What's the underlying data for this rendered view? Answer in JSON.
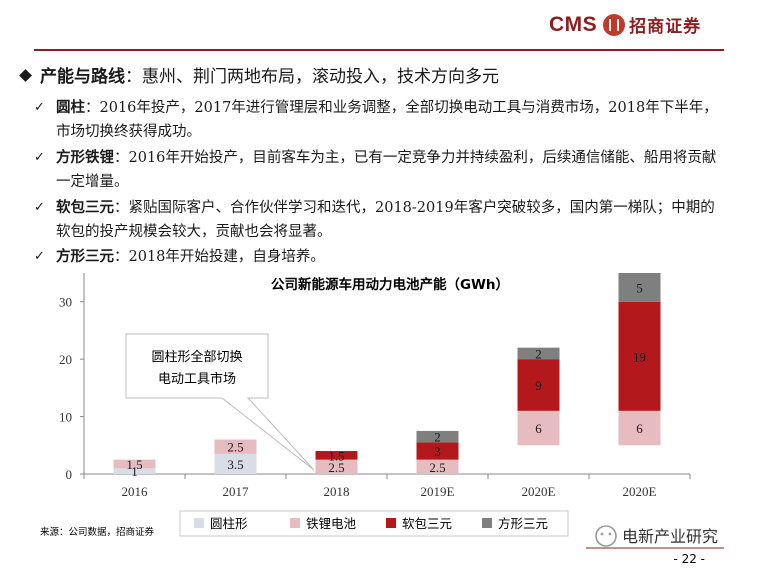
{
  "header": {
    "logo_text": "CMS",
    "logo_cn": "招商证券",
    "accent_color": "#8a1f1f"
  },
  "main_point": {
    "title": "产能与路线",
    "text": "：惠州、荆门两地布局，滚动投入，技术方向多元"
  },
  "sub_points": [
    {
      "title": "圆柱",
      "text": "：2016年投产，2017年进行管理层和业务调整，全部切换电动工具与消费市场，2018年下半年，市场切换终获得成功。"
    },
    {
      "title": "方形铁锂",
      "text": "：2016年开始投产，目前客车为主，已有一定竞争力并持续盈利，后续通信储能、船用将贡献一定增量。"
    },
    {
      "title": "软包三元",
      "text": "：紧贴国际客户、合作伙伴学习和迭代，2018-2019年客户突破较多，国内第一梯队；中期的软包的投产规模会较大，贡献也会将显著。"
    },
    {
      "title": "方形三元",
      "text": "：2018年开始投建，自身培养。"
    }
  ],
  "chart_data": {
    "type": "bar",
    "stacked": true,
    "title": "公司新能源车用动力电池产能（GWh）",
    "xlabel": "",
    "ylabel": "",
    "ylim": [
      0,
      35
    ],
    "yticks": [
      0,
      10,
      20,
      30
    ],
    "grid": false,
    "legend_position": "bottom",
    "categories": [
      "2016",
      "2017",
      "2018",
      "2019E",
      "2020E",
      "2020E"
    ],
    "series": [
      {
        "name": "圆柱形",
        "color": "#d9dde6",
        "values": [
          1,
          3.5,
          0,
          0,
          0,
          0
        ],
        "labels": [
          "1",
          "3.5",
          "",
          "",
          "",
          ""
        ]
      },
      {
        "name": "铁锂电池",
        "color": "#e6bcc0",
        "values": [
          1.5,
          2.5,
          2.5,
          2.5,
          6,
          6
        ],
        "labels": [
          "1.5",
          "2.5",
          "2.5",
          "2.5",
          "6",
          "6"
        ]
      },
      {
        "name": "软包三元",
        "color": "#b3191c",
        "values": [
          0,
          0,
          1.5,
          3,
          9,
          19
        ],
        "labels": [
          "",
          "",
          "1.5",
          "3",
          "9",
          "19"
        ]
      },
      {
        "name": "方形三元",
        "color": "#7f7f7f",
        "values": [
          0,
          0,
          0,
          2,
          2,
          5
        ],
        "labels": [
          "",
          "",
          "",
          "2",
          "2",
          "5"
        ]
      }
    ],
    "baseline_offsets": [
      0,
      0,
      0,
      0,
      5,
      5
    ],
    "annotation": {
      "line1": "圆柱形全部切换",
      "line2": "电动工具市场"
    }
  },
  "footer": {
    "source": "来源：公司数据，招商证券",
    "watermark": "电新产业研究",
    "page_number": "- 22 -"
  }
}
